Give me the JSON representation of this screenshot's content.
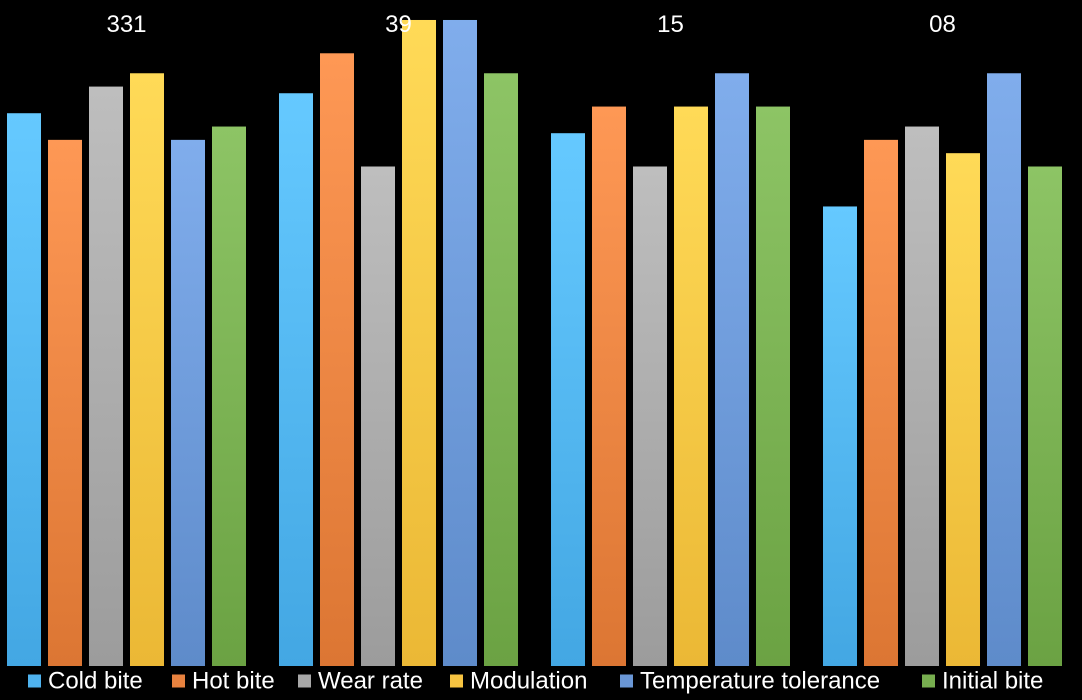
{
  "chart_data": {
    "type": "bar",
    "categories": [
      "331",
      "39",
      "15",
      "08"
    ],
    "series": [
      {
        "name": "Cold bite",
        "color": "#4fb3ef",
        "values": [
          8.3,
          8.6,
          8.0,
          6.9
        ]
      },
      {
        "name": "Hot bite",
        "color": "#e8823f",
        "values": [
          7.9,
          9.2,
          8.4,
          7.9
        ]
      },
      {
        "name": "Wear rate",
        "color": "#a8a8a8",
        "values": [
          8.7,
          7.5,
          7.5,
          8.1
        ]
      },
      {
        "name": "Modulation",
        "color": "#f7c441",
        "values": [
          8.9,
          9.7,
          8.4,
          7.7
        ]
      },
      {
        "name": "Temperature tolerance",
        "color": "#6a97d6",
        "values": [
          7.9,
          9.7,
          8.9,
          8.9
        ]
      },
      {
        "name": "Initial bite",
        "color": "#77ae4f",
        "values": [
          8.1,
          8.9,
          8.4,
          7.5
        ]
      }
    ],
    "ylim": [
      0,
      10
    ],
    "grid": false,
    "legend": "bottom",
    "title": "",
    "xlabel": "",
    "ylabel": ""
  }
}
